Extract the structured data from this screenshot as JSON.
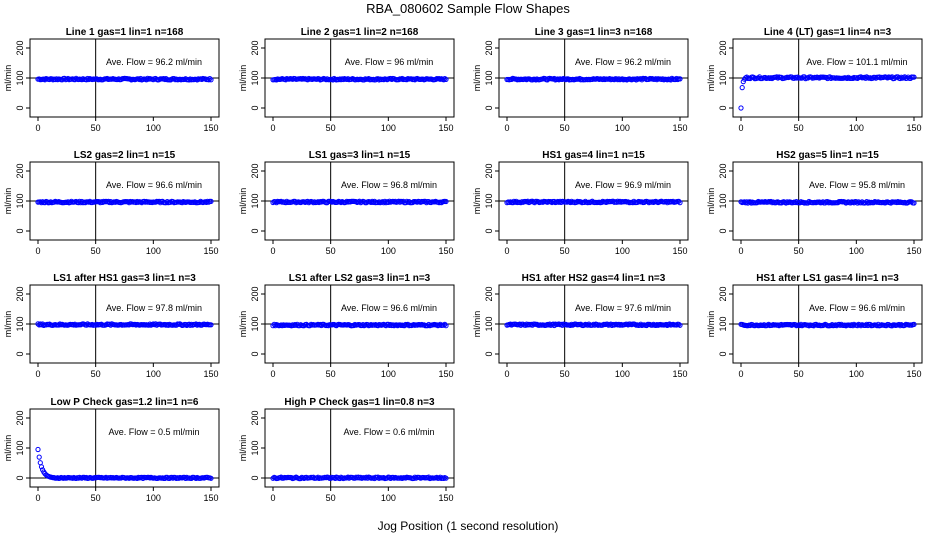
{
  "figure": {
    "title": "RBA_080602  Sample Flow Shapes",
    "xlabel": "Jog Position (1 second resolution)"
  },
  "chart_data": [
    {
      "type": "scatter",
      "title": "Line 1 gas=1 lin=1 n=168",
      "annotation": "Ave. Flow =  96.2  ml/min",
      "ylabel": "ml/min",
      "xlim": [
        0,
        150
      ],
      "ylim": [
        -30,
        230
      ],
      "xticks": [
        "0",
        "50",
        "100",
        "150"
      ],
      "yticks": [
        "0",
        "100",
        "200"
      ],
      "hline": 100,
      "vline": 50,
      "shape": "flat",
      "level": 96.2
    },
    {
      "type": "scatter",
      "title": "Line 2 gas=1 lin=2 n=168",
      "annotation": "Ave. Flow =  96  ml/min",
      "ylabel": "ml/min",
      "xlim": [
        0,
        150
      ],
      "ylim": [
        -30,
        230
      ],
      "xticks": [
        "0",
        "50",
        "100",
        "150"
      ],
      "yticks": [
        "0",
        "100",
        "200"
      ],
      "hline": 100,
      "vline": 50,
      "shape": "flat",
      "level": 96
    },
    {
      "type": "scatter",
      "title": "Line 3 gas=1 lin=3 n=168",
      "annotation": "Ave. Flow =  96.2  ml/min",
      "ylabel": "ml/min",
      "xlim": [
        0,
        150
      ],
      "ylim": [
        -30,
        230
      ],
      "xticks": [
        "0",
        "50",
        "100",
        "150"
      ],
      "yticks": [
        "0",
        "100",
        "200"
      ],
      "hline": 100,
      "vline": 50,
      "shape": "flat",
      "level": 96.2
    },
    {
      "type": "scatter",
      "title": "Line 4 (LT) gas=1 lin=4 n=3",
      "annotation": "Ave. Flow =  101.1  ml/min",
      "ylabel": "ml/min",
      "xlim": [
        0,
        150
      ],
      "ylim": [
        -30,
        230
      ],
      "xticks": [
        "0",
        "50",
        "100",
        "150"
      ],
      "yticks": [
        "0",
        "100",
        "200"
      ],
      "hline": 100,
      "vline": 50,
      "shape": "rise",
      "level": 101.1
    },
    {
      "type": "scatter",
      "title": "LS2 gas=2 lin=1 n=15",
      "annotation": "Ave. Flow =  96.6  ml/min",
      "ylabel": "ml/min",
      "xlim": [
        0,
        150
      ],
      "ylim": [
        -30,
        230
      ],
      "xticks": [
        "0",
        "50",
        "100",
        "150"
      ],
      "yticks": [
        "0",
        "100",
        "200"
      ],
      "hline": 100,
      "vline": 50,
      "shape": "flat",
      "level": 96.6
    },
    {
      "type": "scatter",
      "title": "LS1 gas=3 lin=1 n=15",
      "annotation": "Ave. Flow =  96.8  ml/min",
      "ylabel": "ml/min",
      "xlim": [
        0,
        150
      ],
      "ylim": [
        -30,
        230
      ],
      "xticks": [
        "0",
        "50",
        "100",
        "150"
      ],
      "yticks": [
        "0",
        "100",
        "200"
      ],
      "hline": 100,
      "vline": 50,
      "shape": "flat",
      "level": 96.8
    },
    {
      "type": "scatter",
      "title": "HS1 gas=4 lin=1 n=15",
      "annotation": "Ave. Flow =  96.9  ml/min",
      "ylabel": "ml/min",
      "xlim": [
        0,
        150
      ],
      "ylim": [
        -30,
        230
      ],
      "xticks": [
        "0",
        "50",
        "100",
        "150"
      ],
      "yticks": [
        "0",
        "100",
        "200"
      ],
      "hline": 100,
      "vline": 50,
      "shape": "flat",
      "level": 96.9
    },
    {
      "type": "scatter",
      "title": "HS2 gas=5 lin=1 n=15",
      "annotation": "Ave. Flow =  95.8  ml/min",
      "ylabel": "ml/min",
      "xlim": [
        0,
        150
      ],
      "ylim": [
        -30,
        230
      ],
      "xticks": [
        "0",
        "50",
        "100",
        "150"
      ],
      "yticks": [
        "0",
        "100",
        "200"
      ],
      "hline": 100,
      "vline": 50,
      "shape": "flat",
      "level": 95.8
    },
    {
      "type": "scatter",
      "title": "LS1 after HS1 gas=3 lin=1 n=3",
      "annotation": "Ave. Flow =  97.8  ml/min",
      "ylabel": "ml/min",
      "xlim": [
        0,
        150
      ],
      "ylim": [
        -30,
        230
      ],
      "xticks": [
        "0",
        "50",
        "100",
        "150"
      ],
      "yticks": [
        "0",
        "100",
        "200"
      ],
      "hline": 100,
      "vline": 50,
      "shape": "flat",
      "level": 97.8
    },
    {
      "type": "scatter",
      "title": "LS1 after LS2 gas=3 lin=1 n=3",
      "annotation": "Ave. Flow =  96.6  ml/min",
      "ylabel": "ml/min",
      "xlim": [
        0,
        150
      ],
      "ylim": [
        -30,
        230
      ],
      "xticks": [
        "0",
        "50",
        "100",
        "150"
      ],
      "yticks": [
        "0",
        "100",
        "200"
      ],
      "hline": 100,
      "vline": 50,
      "shape": "flat",
      "level": 96.6
    },
    {
      "type": "scatter",
      "title": "HS1 after HS2 gas=4 lin=1 n=3",
      "annotation": "Ave. Flow =  97.6  ml/min",
      "ylabel": "ml/min",
      "xlim": [
        0,
        150
      ],
      "ylim": [
        -30,
        230
      ],
      "xticks": [
        "0",
        "50",
        "100",
        "150"
      ],
      "yticks": [
        "0",
        "100",
        "200"
      ],
      "hline": 100,
      "vline": 50,
      "shape": "flat",
      "level": 97.6
    },
    {
      "type": "scatter",
      "title": "HS1 after LS1 gas=4 lin=1 n=3",
      "annotation": "Ave. Flow =  96.6  ml/min",
      "ylabel": "ml/min",
      "xlim": [
        0,
        150
      ],
      "ylim": [
        -30,
        230
      ],
      "xticks": [
        "0",
        "50",
        "100",
        "150"
      ],
      "yticks": [
        "0",
        "100",
        "200"
      ],
      "hline": 100,
      "vline": 50,
      "shape": "flat",
      "level": 96.6
    },
    {
      "type": "scatter",
      "title": "Low P Check gas=1.2 lin=1 n=6",
      "annotation": "Ave. Flow =  0.5  ml/min",
      "ylabel": "ml/min",
      "xlim": [
        0,
        150
      ],
      "ylim": [
        -30,
        230
      ],
      "xticks": [
        "0",
        "50",
        "100",
        "150"
      ],
      "yticks": [
        "0",
        "100",
        "200"
      ],
      "hline": 0,
      "vline": 50,
      "shape": "decay",
      "level": 0.5
    },
    {
      "type": "scatter",
      "title": "High P Check gas=1 lin=0.8 n=3",
      "annotation": "Ave. Flow =  0.6  ml/min",
      "ylabel": "ml/min",
      "xlim": [
        0,
        150
      ],
      "ylim": [
        -30,
        230
      ],
      "xticks": [
        "0",
        "50",
        "100",
        "150"
      ],
      "yticks": [
        "0",
        "100",
        "200"
      ],
      "hline": 0,
      "vline": 50,
      "shape": "flat",
      "level": 0.6
    }
  ]
}
